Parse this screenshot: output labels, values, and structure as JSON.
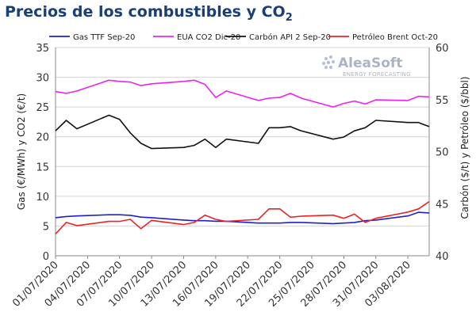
{
  "title": {
    "main": "Precios de los combustibles y CO",
    "subscript": "2"
  },
  "logo": {
    "name": "AleaSoft",
    "tagline": "ENERGY FORECASTING"
  },
  "colors": {
    "gas": "#1f1fd0",
    "eua": "#ee22ee",
    "coal": "#111111",
    "brent": "#ee2222",
    "grid": "#d4d4d4",
    "title": "#1a3e78"
  },
  "chart_data": {
    "type": "line",
    "x_tick_labels": [
      "01/07/2020",
      "04/07/2020",
      "07/07/2020",
      "10/07/2020",
      "13/07/2020",
      "16/07/2020",
      "19/07/2020",
      "22/07/2020",
      "25/07/2020",
      "28/07/2020",
      "31/07/2020",
      "03/08/2020"
    ],
    "x": [
      "01/07/2020",
      "02/07/2020",
      "03/07/2020",
      "06/07/2020",
      "07/07/2020",
      "08/07/2020",
      "09/07/2020",
      "10/07/2020",
      "13/07/2020",
      "14/07/2020",
      "15/07/2020",
      "16/07/2020",
      "17/07/2020",
      "20/07/2020",
      "21/07/2020",
      "22/07/2020",
      "23/07/2020",
      "24/07/2020",
      "27/07/2020",
      "28/07/2020",
      "29/07/2020",
      "30/07/2020",
      "31/07/2020",
      "03/08/2020",
      "04/08/2020",
      "05/08/2020"
    ],
    "xlabel": "",
    "ylabel_left": "Gas (€/MWh) y CO2 (€/t)",
    "ylabel_right": "Carbón ($/t) y Petróleo ($/bbl)",
    "ylim_left": [
      0,
      35
    ],
    "ylim_right": [
      40,
      60
    ],
    "yticks_left": [
      0,
      5,
      10,
      15,
      20,
      25,
      30,
      35
    ],
    "yticks_right": [
      40,
      45,
      50,
      55,
      60
    ],
    "grid": "horizontal",
    "legend_position": "top",
    "series": [
      {
        "name": "Gas TTF Sep-20",
        "axis": "left",
        "color_key": "gas",
        "values": [
          6.4,
          6.6,
          6.7,
          6.9,
          6.9,
          6.8,
          6.5,
          6.4,
          6.0,
          5.9,
          5.9,
          5.8,
          5.8,
          5.5,
          5.5,
          5.5,
          5.6,
          5.6,
          5.4,
          5.5,
          5.6,
          5.9,
          6.0,
          6.7,
          7.3,
          7.2
        ]
      },
      {
        "name": "EUA CO2 Dic-20",
        "axis": "left",
        "color_key": "eua",
        "values": [
          27.6,
          27.3,
          27.7,
          29.5,
          29.3,
          29.2,
          28.6,
          28.9,
          29.3,
          29.5,
          28.8,
          26.6,
          27.7,
          26.1,
          26.5,
          26.6,
          27.3,
          26.5,
          25.0,
          25.6,
          26.0,
          25.5,
          26.2,
          26.1,
          26.8,
          26.7
        ]
      },
      {
        "name": "Carbón API 2 Sep-20",
        "axis": "right",
        "color_key": "coal",
        "values": [
          52.0,
          53.0,
          52.2,
          53.5,
          53.1,
          51.8,
          50.8,
          50.3,
          50.4,
          50.6,
          51.2,
          50.4,
          51.2,
          50.8,
          52.3,
          52.3,
          52.4,
          52.0,
          51.2,
          51.4,
          52.0,
          52.3,
          53.0,
          52.8,
          52.8,
          52.4
        ]
      },
      {
        "name": "Petróleo Brent Oct-20",
        "axis": "right",
        "color_key": "brent",
        "values": [
          42.1,
          43.2,
          42.9,
          43.3,
          43.3,
          43.5,
          42.6,
          43.4,
          43.0,
          43.2,
          43.9,
          43.5,
          43.3,
          43.5,
          44.5,
          44.5,
          43.7,
          43.8,
          43.9,
          43.6,
          44.0,
          43.2,
          43.6,
          44.2,
          44.5,
          45.2
        ]
      }
    ]
  }
}
